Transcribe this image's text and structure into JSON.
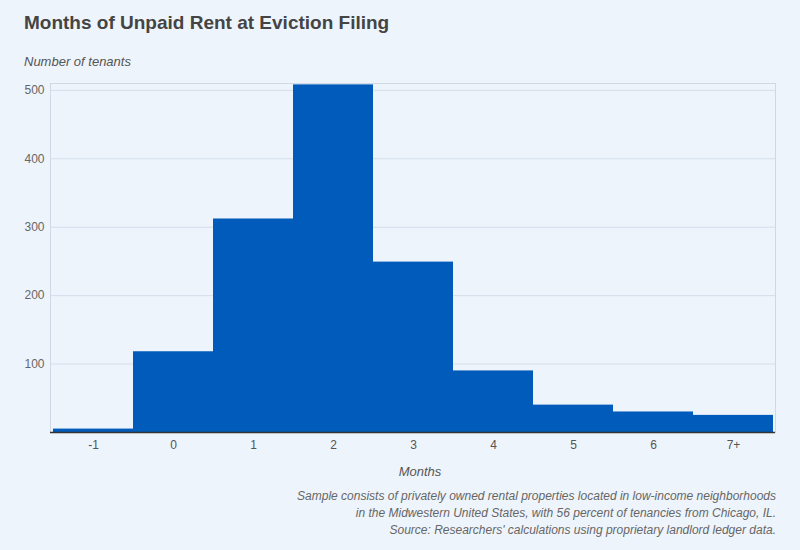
{
  "chart_data": {
    "type": "bar",
    "title": "Months of Unpaid Rent at Eviction Filing",
    "y_label": "Number of tenants",
    "x_label": "Months",
    "categories": [
      "-1",
      "0",
      "1",
      "2",
      "3",
      "4",
      "5",
      "6",
      "7+"
    ],
    "values": [
      5,
      118,
      312,
      508,
      249,
      90,
      40,
      30,
      25
    ],
    "color": "#005bbb",
    "ylim": [
      0,
      510
    ],
    "yticks": [
      100,
      200,
      300,
      400,
      500
    ],
    "grid": true,
    "caption": [
      "Sample consists of privately owned rental properties located in low-income neighborhoods",
      "in the Midwestern United States, with 56 percent of tenancies from Chicago, IL.",
      "Source: Researchers' calculations using proprietary landlord ledger data."
    ]
  }
}
